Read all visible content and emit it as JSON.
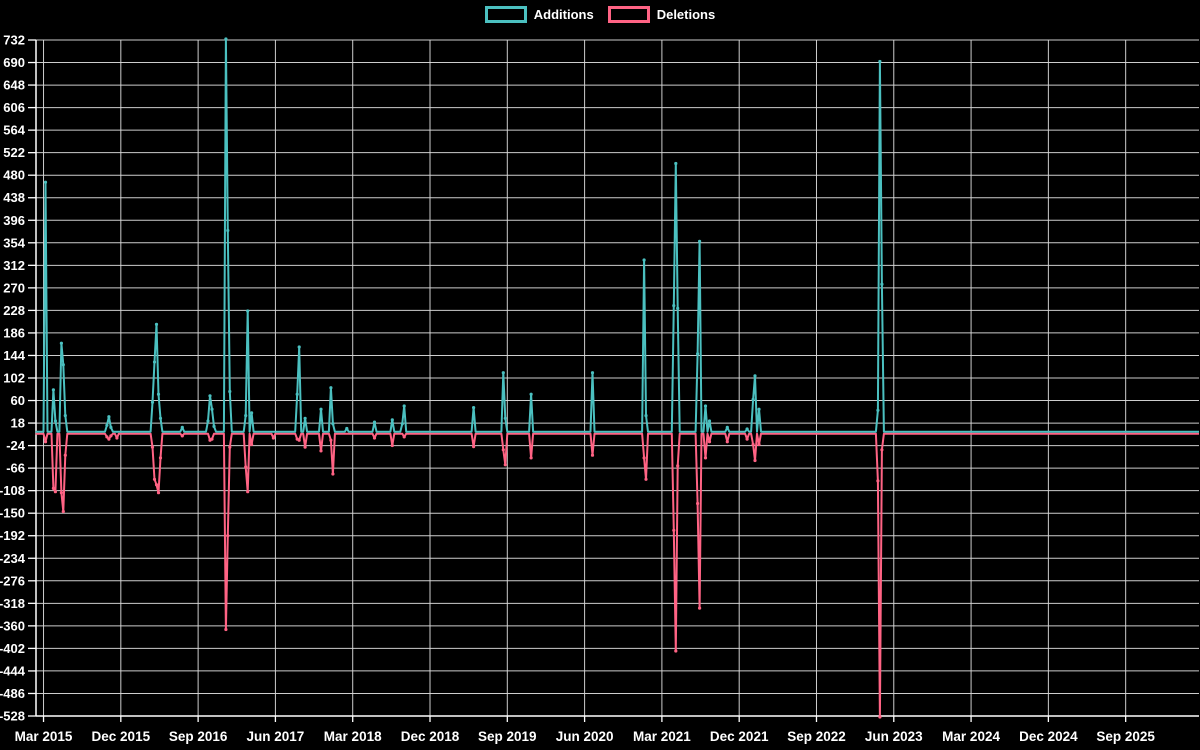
{
  "legend": {
    "additions_label": "Additions",
    "deletions_label": "Deletions"
  },
  "colors": {
    "background": "#000000",
    "additions": "#4bc0c0",
    "deletions": "#ff6384",
    "grid": "#d9d9d9",
    "axis": "#ffffff",
    "text": "#ffffff"
  },
  "chart_data": {
    "type": "line",
    "title": "",
    "xlabel": "",
    "ylabel": "",
    "legend_position": "top",
    "grid": true,
    "x_tick_labels": [
      "Mar 2015",
      "Dec 2015",
      "Sep 2016",
      "Jun 2017",
      "Mar 2018",
      "Dec 2018",
      "Sep 2019",
      "Jun 2020",
      "Mar 2021",
      "Dec 2021",
      "Sep 2022",
      "Jun 2023",
      "Mar 2024",
      "Dec 2024",
      "Sep 2025"
    ],
    "y_ticks": [
      732,
      690,
      648,
      606,
      564,
      522,
      480,
      438,
      396,
      354,
      312,
      270,
      228,
      186,
      144,
      102,
      60,
      18,
      -24,
      -66,
      -108,
      -150,
      -192,
      -234,
      -276,
      -318,
      -360,
      -402,
      -444,
      -486,
      -528
    ],
    "ylim": [
      -528,
      732
    ],
    "y_step": 42,
    "n_points": 588,
    "points_per_x_tick": 39,
    "first_tick_point_index": 4,
    "baseline_value": 0,
    "series": [
      {
        "name": "Additions",
        "color": "#4bc0c0",
        "spikes": {
          "5": 465,
          "9": 78,
          "10": 20,
          "13": 165,
          "14": 125,
          "15": 30,
          "36": 12,
          "37": 28,
          "38": 8,
          "59": 55,
          "60": 130,
          "61": 200,
          "62": 70,
          "63": 25,
          "74": 8,
          "87": 20,
          "88": 67,
          "89": 42,
          "90": 10,
          "96": 732,
          "97": 375,
          "98": 75,
          "106": 30,
          "107": 225,
          "109": 35,
          "132": 70,
          "133": 158,
          "136": 25,
          "144": 42,
          "149": 82,
          "150": 15,
          "157": 6,
          "171": 18,
          "180": 22,
          "185": 15,
          "186": 48,
          "221": 45,
          "236": 110,
          "237": 25,
          "250": 70,
          "281": 110,
          "307": 320,
          "308": 30,
          "322": 235,
          "323": 500,
          "324": 230,
          "334": 145,
          "335": 355,
          "338": 48,
          "340": 20,
          "349": 8,
          "359": 5,
          "362": 60,
          "363": 104,
          "365": 42,
          "425": 40,
          "426": 690,
          "427": 275
        }
      },
      {
        "name": "Deletions",
        "color": "#ff6384",
        "spikes": {
          "5": -15,
          "9": -102,
          "10": -108,
          "13": -110,
          "14": -145,
          "15": -40,
          "36": -6,
          "37": -10,
          "38": -4,
          "41": -8,
          "59": -25,
          "60": -85,
          "61": -95,
          "62": -110,
          "63": -45,
          "74": -4,
          "88": -12,
          "89": -10,
          "96": -365,
          "97": -190,
          "98": -25,
          "106": -62,
          "107": -108,
          "109": -20,
          "120": -8,
          "132": -10,
          "133": -12,
          "136": -25,
          "144": -32,
          "149": -12,
          "150": -75,
          "171": -8,
          "180": -22,
          "186": -6,
          "221": -24,
          "236": -30,
          "237": -58,
          "250": -45,
          "281": -40,
          "307": -45,
          "308": -85,
          "322": -180,
          "323": -405,
          "324": -60,
          "334": -130,
          "335": -325,
          "338": -45,
          "340": -15,
          "349": -15,
          "359": -10,
          "362": -20,
          "363": -50,
          "365": -20,
          "425": -88,
          "426": -528,
          "427": -30
        }
      }
    ]
  }
}
